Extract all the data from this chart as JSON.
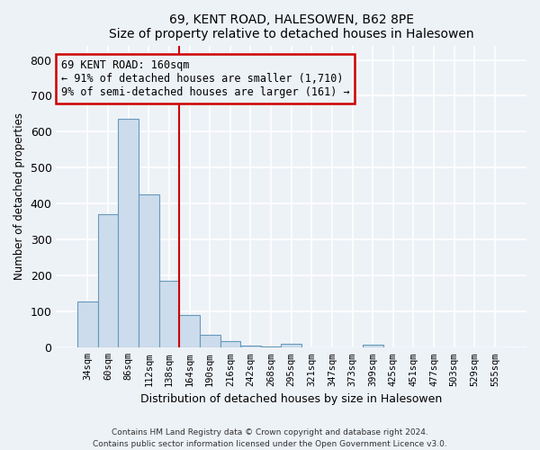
{
  "title1": "69, KENT ROAD, HALESOWEN, B62 8PE",
  "title2": "Size of property relative to detached houses in Halesowen",
  "xlabel": "Distribution of detached houses by size in Halesowen",
  "ylabel": "Number of detached properties",
  "bar_labels": [
    "34sqm",
    "60sqm",
    "86sqm",
    "112sqm",
    "138sqm",
    "164sqm",
    "190sqm",
    "216sqm",
    "242sqm",
    "268sqm",
    "295sqm",
    "321sqm",
    "347sqm",
    "373sqm",
    "399sqm",
    "425sqm",
    "451sqm",
    "477sqm",
    "503sqm",
    "529sqm",
    "555sqm"
  ],
  "bar_heights": [
    128,
    370,
    635,
    425,
    185,
    90,
    37,
    18,
    5,
    4,
    10,
    0,
    0,
    0,
    8,
    0,
    0,
    0,
    0,
    0,
    0
  ],
  "bar_color": "#ccdcec",
  "bar_edge_color": "#6699bb",
  "bar_width": 1.0,
  "property_line_x": 4.5,
  "annotation_line1": "69 KENT ROAD: 160sqm",
  "annotation_line2": "← 91% of detached houses are smaller (1,710)",
  "annotation_line3": "9% of semi-detached houses are larger (161) →",
  "annotation_box_color": "#cc0000",
  "ylim": [
    0,
    840
  ],
  "yticks": [
    0,
    100,
    200,
    300,
    400,
    500,
    600,
    700,
    800
  ],
  "footnote1": "Contains HM Land Registry data © Crown copyright and database right 2024.",
  "footnote2": "Contains public sector information licensed under the Open Government Licence v3.0.",
  "bg_color": "#edf2f7",
  "grid_color": "#ffffff"
}
